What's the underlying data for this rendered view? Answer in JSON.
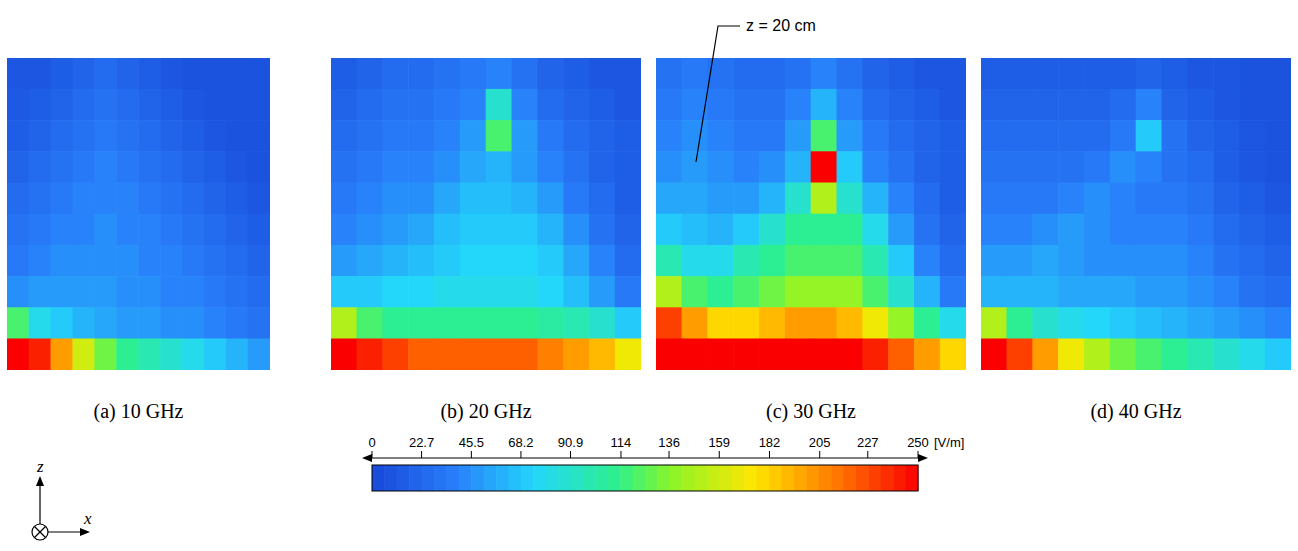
{
  "chart_data": [
    {
      "type": "heatmap",
      "title": "(a) 10 GHz",
      "ylim": [
        0,
        30
      ],
      "tick_labels": false,
      "cells": [
        [
          10,
          10,
          15,
          20,
          25,
          20,
          15,
          10,
          8,
          8,
          8,
          8
        ],
        [
          12,
          15,
          20,
          25,
          30,
          25,
          20,
          15,
          10,
          8,
          8,
          8
        ],
        [
          15,
          20,
          25,
          30,
          35,
          30,
          25,
          20,
          15,
          10,
          8,
          8
        ],
        [
          20,
          25,
          30,
          35,
          40,
          35,
          30,
          25,
          20,
          15,
          10,
          8
        ],
        [
          25,
          30,
          35,
          40,
          40,
          40,
          35,
          30,
          25,
          20,
          15,
          10
        ],
        [
          30,
          35,
          40,
          40,
          45,
          40,
          40,
          35,
          30,
          25,
          20,
          15
        ],
        [
          35,
          40,
          45,
          45,
          45,
          45,
          40,
          40,
          35,
          30,
          25,
          20
        ],
        [
          45,
          50,
          50,
          50,
          50,
          45,
          45,
          40,
          40,
          35,
          30,
          25
        ],
        [
          120,
          80,
          70,
          60,
          55,
          50,
          50,
          45,
          45,
          40,
          35,
          30
        ],
        [
          250,
          240,
          200,
          160,
          130,
          110,
          100,
          90,
          80,
          70,
          60,
          50
        ]
      ]
    },
    {
      "type": "heatmap",
      "title": "(b) 20 GHz",
      "ylim": [
        0,
        30
      ],
      "tick_labels": false,
      "cells": [
        [
          15,
          20,
          25,
          25,
          30,
          35,
          40,
          30,
          20,
          15,
          10,
          10
        ],
        [
          20,
          25,
          30,
          30,
          35,
          40,
          90,
          40,
          25,
          20,
          15,
          10
        ],
        [
          25,
          30,
          35,
          35,
          40,
          50,
          120,
          50,
          35,
          25,
          20,
          15
        ],
        [
          30,
          35,
          40,
          40,
          45,
          55,
          60,
          50,
          40,
          30,
          20,
          15
        ],
        [
          35,
          40,
          45,
          45,
          55,
          65,
          65,
          60,
          50,
          35,
          25,
          15
        ],
        [
          40,
          45,
          50,
          55,
          65,
          70,
          70,
          70,
          60,
          45,
          30,
          20
        ],
        [
          50,
          55,
          60,
          65,
          70,
          75,
          75,
          75,
          70,
          55,
          40,
          25
        ],
        [
          70,
          70,
          75,
          75,
          80,
          80,
          80,
          80,
          75,
          65,
          50,
          35
        ],
        [
          150,
          120,
          110,
          110,
          110,
          110,
          110,
          110,
          105,
          100,
          90,
          70
        ],
        [
          250,
          240,
          230,
          220,
          220,
          220,
          220,
          220,
          210,
          200,
          190,
          170
        ]
      ]
    },
    {
      "type": "heatmap",
      "title": "(c) 30 GHz",
      "ylim": [
        0,
        30
      ],
      "tick_labels": false,
      "cells": [
        [
          30,
          35,
          30,
          25,
          25,
          30,
          40,
          30,
          20,
          15,
          10,
          10
        ],
        [
          35,
          40,
          35,
          30,
          30,
          40,
          60,
          40,
          25,
          20,
          15,
          10
        ],
        [
          40,
          45,
          40,
          35,
          35,
          50,
          120,
          50,
          35,
          25,
          20,
          15
        ],
        [
          45,
          50,
          45,
          40,
          45,
          60,
          250,
          70,
          40,
          30,
          20,
          15
        ],
        [
          55,
          55,
          50,
          50,
          60,
          90,
          150,
          90,
          60,
          40,
          25,
          15
        ],
        [
          70,
          65,
          60,
          70,
          90,
          110,
          110,
          110,
          80,
          50,
          30,
          20
        ],
        [
          100,
          80,
          80,
          100,
          110,
          120,
          120,
          120,
          100,
          70,
          40,
          25
        ],
        [
          150,
          120,
          110,
          120,
          130,
          140,
          140,
          140,
          120,
          90,
          60,
          35
        ],
        [
          230,
          200,
          180,
          180,
          190,
          200,
          200,
          190,
          170,
          140,
          110,
          80
        ],
        [
          250,
          250,
          250,
          250,
          250,
          250,
          250,
          250,
          240,
          220,
          200,
          180
        ]
      ]
    },
    {
      "type": "heatmap",
      "title": "(d) 40 GHz",
      "ylim": [
        0,
        30
      ],
      "tick_labels": false,
      "cells": [
        [
          15,
          15,
          15,
          15,
          15,
          15,
          20,
          15,
          10,
          10,
          8,
          8
        ],
        [
          20,
          20,
          20,
          20,
          20,
          25,
          40,
          20,
          15,
          10,
          8,
          8
        ],
        [
          25,
          25,
          25,
          25,
          25,
          35,
          70,
          30,
          20,
          15,
          10,
          8
        ],
        [
          30,
          30,
          30,
          30,
          35,
          45,
          40,
          30,
          25,
          15,
          10,
          8
        ],
        [
          35,
          35,
          35,
          40,
          45,
          40,
          35,
          35,
          30,
          20,
          15,
          10
        ],
        [
          40,
          40,
          45,
          50,
          45,
          40,
          40,
          40,
          35,
          25,
          20,
          15
        ],
        [
          50,
          50,
          55,
          50,
          45,
          45,
          45,
          45,
          40,
          30,
          25,
          20
        ],
        [
          60,
          60,
          60,
          55,
          55,
          55,
          50,
          50,
          45,
          40,
          30,
          25
        ],
        [
          150,
          110,
          90,
          80,
          75,
          70,
          65,
          60,
          55,
          50,
          45,
          40
        ],
        [
          250,
          230,
          200,
          170,
          150,
          130,
          120,
          110,
          100,
          90,
          80,
          70
        ]
      ]
    }
  ],
  "colorbar": {
    "range": [
      0,
      250
    ],
    "ticks": [
      0,
      22.7,
      45.5,
      68.2,
      90.9,
      114,
      136,
      159,
      182,
      205,
      227,
      250
    ],
    "label": "[V/m]"
  },
  "axis_labels": {
    "x": "x",
    "z": "z"
  },
  "annotation": {
    "text": "z = 20 cm",
    "panel": 2,
    "z": 20
  }
}
